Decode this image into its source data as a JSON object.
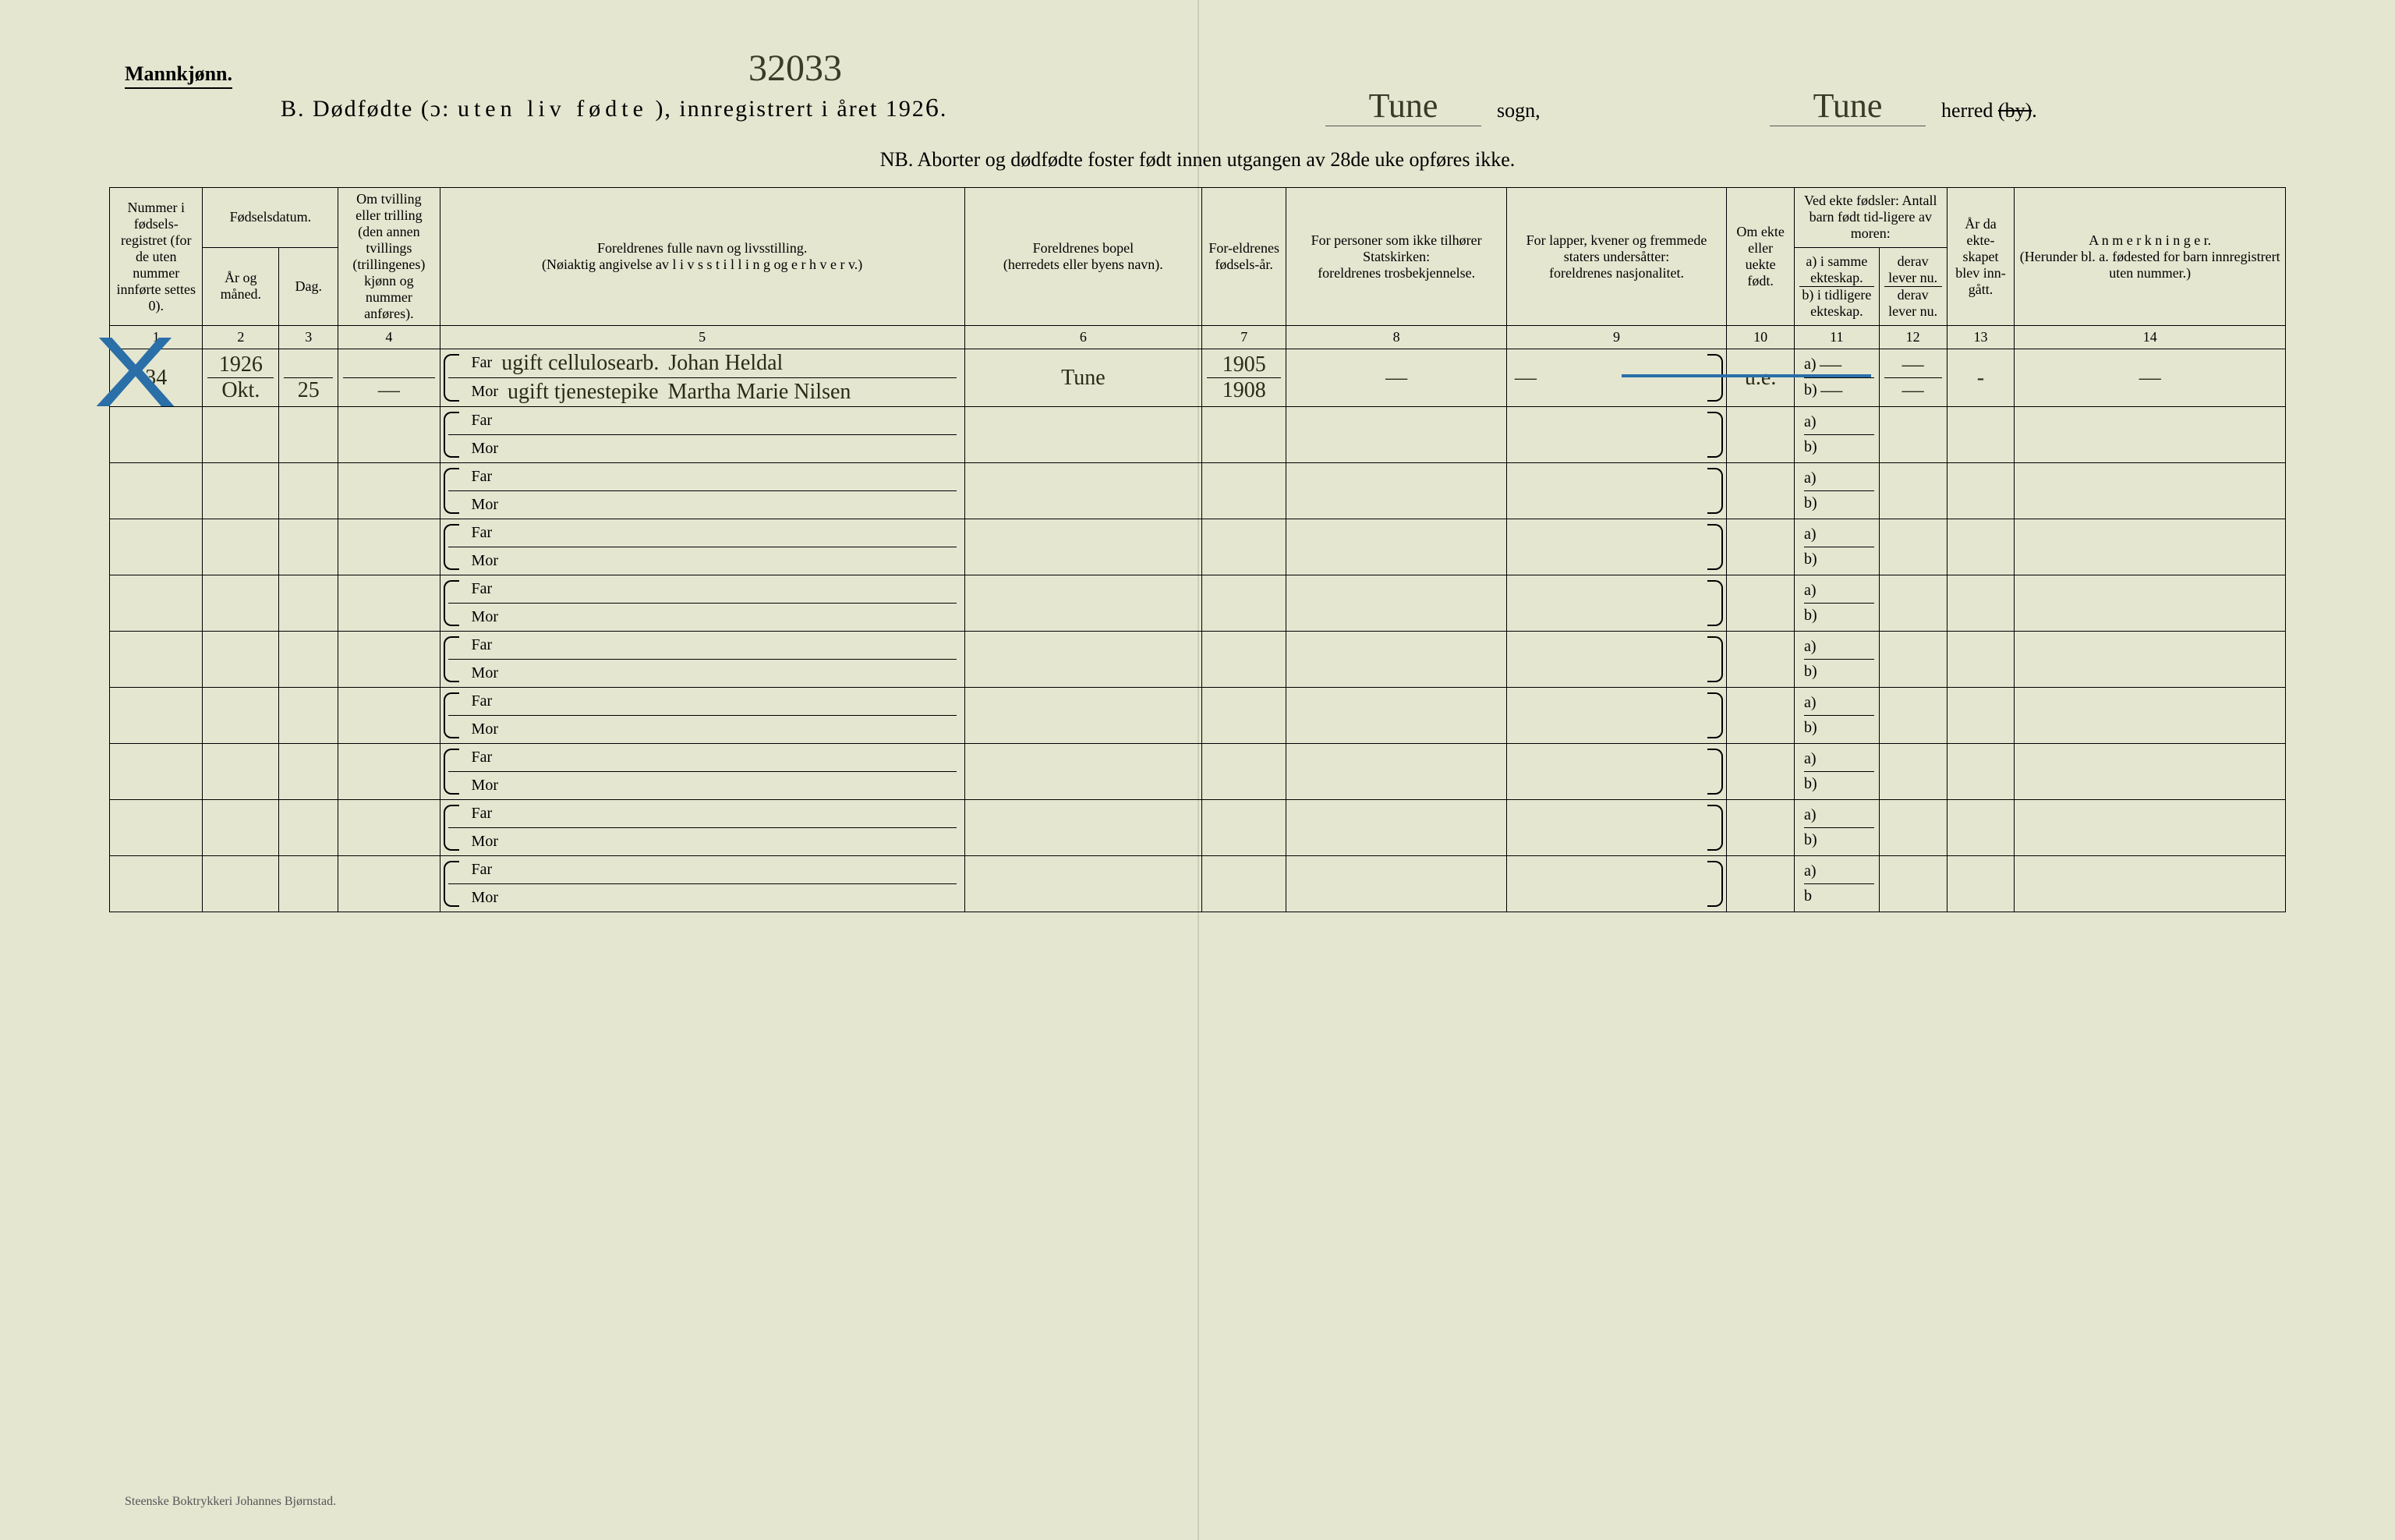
{
  "header": {
    "gender": "Mannkjønn.",
    "hand_top": "32033",
    "title_prefix": "B.  Dødfødte (ɔ:",
    "title_spaced": "uten liv fødte",
    "title_suffix": "),  innregistrert i året 192",
    "year_digit": "6",
    "title_end": ".",
    "sogn_hand": "Tune",
    "sogn_label": "sogn,",
    "herred_hand": "Tune",
    "herred_label_pre": "herred",
    "herred_label_strike": "(by)",
    "herred_label_post": ".",
    "nb": "NB.  Aborter og dødfødte foster født innen utgangen av 28de uke opføres ikke."
  },
  "columns": {
    "c1": "Nummer i fødsels-registret (for de uten nummer innførte settes 0).",
    "c2_3_group": "Fødselsdatum.",
    "c2": "År og måned.",
    "c3": "Dag.",
    "c4": "Om tvilling eller trilling (den annen tvillings (trillingenes) kjønn og nummer anføres).",
    "c5_top": "Foreldrenes fulle navn og livsstilling.",
    "c5_bot": "(Nøiaktig angivelse av  l i v s s t i l l i n g  og e r h v e r v.)",
    "c6_top": "Foreldrenes bopel",
    "c6_bot": "(herredets eller byens navn).",
    "c7": "For-eldrenes fødsels-år.",
    "c8_top": "For personer som ikke tilhører Statskirken:",
    "c8_bot": "foreldrenes trosbekjennelse.",
    "c9_top": "For lapper, kvener og fremmede staters undersåtter:",
    "c9_bot": "foreldrenes nasjonalitet.",
    "c10": "Om ekte eller uekte født.",
    "c11_top": "Ved ekte fødsler: Antall barn født tid-ligere av moren:",
    "c11a": "a) i samme ekteskap.",
    "c11b": "b) i tidligere ekteskap.",
    "c12a": "derav lever nu.",
    "c12b": "derav lever nu.",
    "c13": "År da ekte-skapet blev inn-gått.",
    "c14_top": "A n m e r k n i n g e r.",
    "c14_bot": "(Herunder bl. a. fødested for barn innregistrert uten nummer.)"
  },
  "col_nums": [
    "1",
    "2",
    "3",
    "4",
    "5",
    "6",
    "7",
    "8",
    "9",
    "10",
    "11",
    "12",
    "13",
    "14"
  ],
  "labels": {
    "far": "Far",
    "mor": "Mor",
    "a": "a)",
    "b": "b)"
  },
  "entry": {
    "num": "34",
    "year": "1926",
    "month": "Okt.",
    "day": "25",
    "twin": "—",
    "far_occ": "ugift cellulosearb.",
    "far_name": "Johan Heldal",
    "mor_occ": "ugift tjenestepike",
    "mor_name": "Martha Marie Nilsen",
    "bopel": "Tune",
    "far_year": "1905",
    "mor_year": "1908",
    "c8": "—",
    "c9": "—",
    "c10": "u.e.",
    "c11a": "—",
    "c11b": "—",
    "c12a": "—",
    "c12b": "—",
    "c13": "-",
    "c14": "—"
  },
  "footer": "Steenske Boktrykkeri Johannes Bjørnstad.",
  "colors": {
    "paper": "#e4e6d0",
    "ink": "#000000",
    "hand": "#2a2a18",
    "blue": "#2a6fa8"
  }
}
